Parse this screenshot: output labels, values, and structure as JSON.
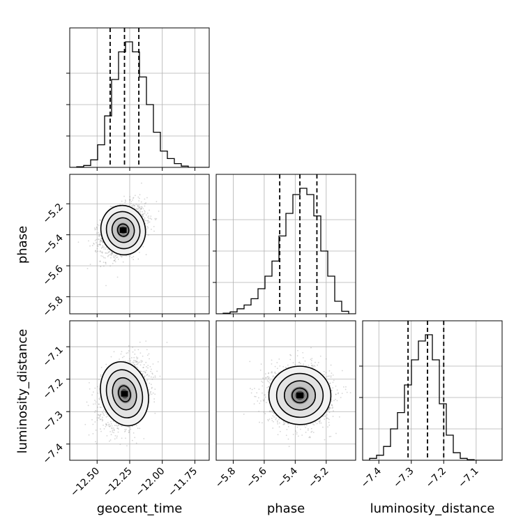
{
  "chart_data": {
    "type": "corner",
    "parameters": [
      "geocent_time",
      "phase",
      "luminosity_distance"
    ],
    "axis_labels": {
      "bottom": [
        "geocent_time",
        "phase",
        "luminosity_distance"
      ],
      "left": [
        "phase",
        "luminosity_distance"
      ]
    },
    "ranges": {
      "geocent_time": [
        -12.71,
        -11.64
      ],
      "phase": [
        -5.91,
        -5.01
      ],
      "luminosity_distance": [
        -7.45,
        -7.02
      ]
    },
    "ticks": {
      "geocent_time": [
        -12.5,
        -12.25,
        -12.0,
        -11.75
      ],
      "phase": [
        -5.8,
        -5.6,
        -5.4,
        -5.2
      ],
      "luminosity_distance": [
        -7.4,
        -7.3,
        -7.2,
        -7.1
      ]
    },
    "tick_labels": {
      "geocent_time": [
        "−12.50",
        "−12.25",
        "−12.00",
        "−11.75"
      ],
      "phase": [
        "−5.8",
        "−5.6",
        "−5.4",
        "−5.2"
      ],
      "luminosity_distance": [
        "−7.4",
        "−7.3",
        "−7.2",
        "−7.1"
      ]
    },
    "grid": true,
    "histograms": {
      "geocent_time": {
        "bin_edges": [
          -12.71,
          -12.6565,
          -12.603,
          -12.5495,
          -12.496,
          -12.4425,
          -12.389,
          -12.3355,
          -12.282,
          -12.2285,
          -12.175,
          -12.1215,
          -12.068,
          -12.0145,
          -11.961,
          -11.9075,
          -11.854,
          -11.8005,
          -11.747,
          -11.6935,
          -11.64
        ],
        "counts": [
          0.0,
          0.005,
          0.015,
          0.06,
          0.18,
          0.41,
          0.7,
          0.92,
          1.0,
          0.92,
          0.72,
          0.5,
          0.28,
          0.13,
          0.07,
          0.03,
          0.01,
          0.0,
          0.0,
          0.0
        ],
        "quantiles": [
          -12.4,
          -12.29,
          -12.18
        ]
      },
      "phase": {
        "bin_edges": [
          -5.91,
          -5.865,
          -5.82,
          -5.775,
          -5.73,
          -5.685,
          -5.64,
          -5.595,
          -5.55,
          -5.505,
          -5.46,
          -5.415,
          -5.37,
          -5.325,
          -5.28,
          -5.235,
          -5.19,
          -5.145,
          -5.1,
          -5.055,
          -5.01
        ],
        "counts": [
          0.0,
          0.005,
          0.015,
          0.04,
          0.07,
          0.12,
          0.2,
          0.3,
          0.42,
          0.62,
          0.8,
          0.95,
          1.0,
          0.95,
          0.78,
          0.5,
          0.3,
          0.1,
          0.02,
          0.0
        ],
        "quantiles": [
          -5.5,
          -5.37,
          -5.26
        ]
      },
      "luminosity_distance": {
        "bin_edges": [
          -7.45,
          -7.4285,
          -7.407,
          -7.3855,
          -7.364,
          -7.3425,
          -7.321,
          -7.2995,
          -7.278,
          -7.2565,
          -7.235,
          -7.2135,
          -7.192,
          -7.1705,
          -7.149,
          -7.1275,
          -7.106,
          -7.0845,
          -7.063,
          -7.0415,
          -7.02
        ],
        "counts": [
          0.0,
          0.015,
          0.04,
          0.11,
          0.25,
          0.38,
          0.6,
          0.8,
          0.95,
          1.0,
          0.8,
          0.45,
          0.2,
          0.06,
          0.015,
          0.005,
          0.0,
          0.0,
          0.0,
          0.0
        ],
        "quantiles": [
          -7.31,
          -7.25,
          -7.2
        ]
      }
    },
    "joint_2d": [
      {
        "x": "geocent_time",
        "y": "phase",
        "mean": [
          -12.3,
          -5.37
        ],
        "sd": [
          0.085,
          0.08
        ],
        "rho": 0.35
      },
      {
        "x": "geocent_time",
        "y": "luminosity_distance",
        "mean": [
          -12.29,
          -7.245
        ],
        "sd": [
          0.09,
          0.05
        ],
        "rho": 0.3
      },
      {
        "x": "phase",
        "y": "luminosity_distance",
        "mean": [
          -5.37,
          -7.25
        ],
        "sd": [
          0.1,
          0.045
        ],
        "rho": -0.05
      }
    ],
    "contour_levels_sigma": [
      0.5,
      1.0,
      1.5,
      2.0
    ]
  }
}
